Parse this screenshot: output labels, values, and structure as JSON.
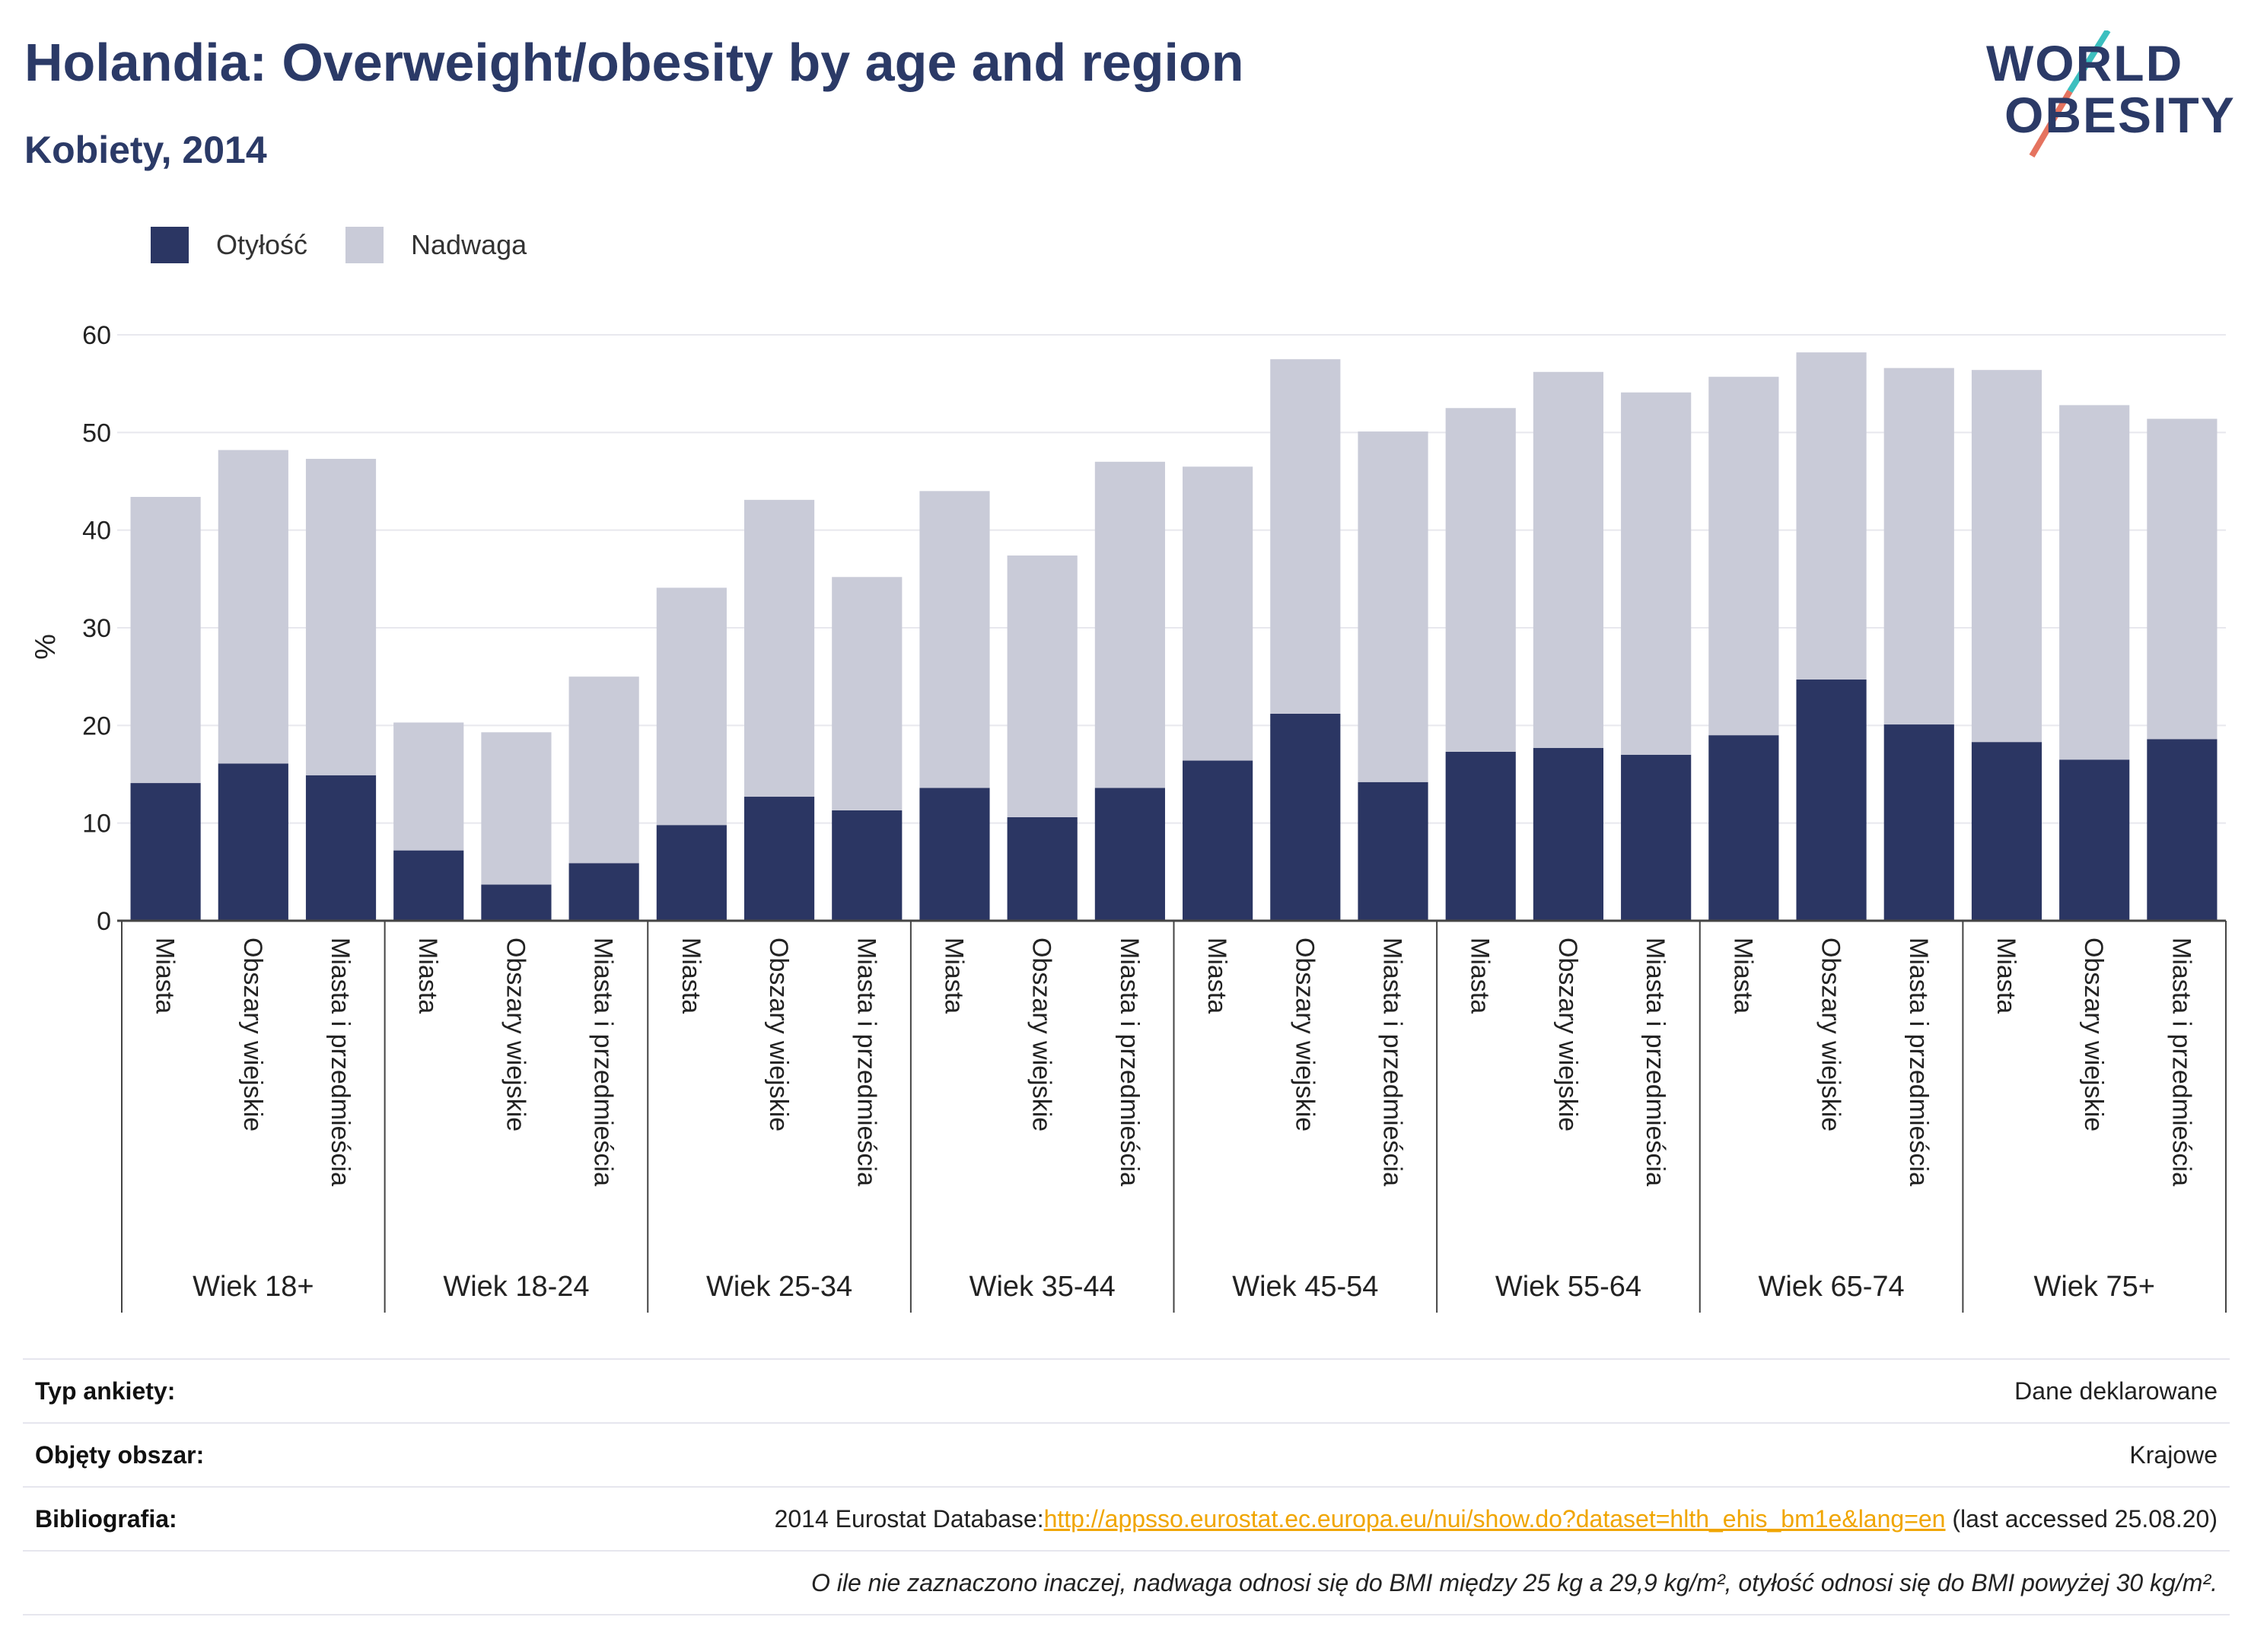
{
  "header": {
    "title": "Holandia: Overweight/obesity by age and region",
    "subtitle": "Kobiety, 2014"
  },
  "logo": {
    "line1": "WORLD",
    "line2": "OBESITY"
  },
  "colors": {
    "obesity": "#2b3663",
    "overweight": "#c9cbd8",
    "title": "#2b3a67",
    "link": "#f0a500"
  },
  "chart_data": {
    "type": "bar",
    "stacked": true,
    "ylabel": "%",
    "ylim": [
      0,
      60
    ],
    "yticks": [
      0,
      10,
      20,
      30,
      40,
      50,
      60
    ],
    "grid": true,
    "legend_placement": "top-left",
    "groups": [
      "Wiek 18+",
      "Wiek 18-24",
      "Wiek 25-34",
      "Wiek 35-44",
      "Wiek 45-54",
      "Wiek 55-64",
      "Wiek 65-74",
      "Wiek 75+"
    ],
    "subcategories": [
      "Miasta",
      "Obszary wiejskie",
      "Miasta i przedmieścia"
    ],
    "series": [
      {
        "name": "Otyłość",
        "values": [
          [
            14.1,
            16.1,
            14.9
          ],
          [
            7.2,
            3.7,
            5.9
          ],
          [
            9.8,
            12.7,
            11.3
          ],
          [
            13.6,
            10.6,
            13.6
          ],
          [
            16.4,
            21.2,
            14.2
          ],
          [
            17.3,
            17.7,
            17.0
          ],
          [
            19.0,
            24.7,
            20.1
          ],
          [
            18.3,
            16.5,
            18.6
          ]
        ]
      },
      {
        "name": "Nadwaga",
        "values": [
          [
            29.3,
            32.1,
            32.4
          ],
          [
            13.1,
            15.6,
            19.1
          ],
          [
            24.3,
            30.4,
            23.9
          ],
          [
            30.4,
            26.8,
            33.4
          ],
          [
            30.1,
            36.3,
            35.9
          ],
          [
            35.2,
            38.5,
            37.1
          ],
          [
            36.7,
            33.5,
            36.5
          ],
          [
            38.1,
            36.3,
            32.8
          ]
        ]
      }
    ]
  },
  "info": {
    "rows": [
      {
        "key": "Typ ankiety:",
        "value": "Dane deklarowane"
      },
      {
        "key": "Objęty obszar:",
        "value": "Krajowe"
      }
    ],
    "bibliography": {
      "key": "Bibliografia:",
      "prefix": "2014 Eurostat Database:",
      "link": "http://appsso.eurostat.ec.europa.eu/nui/show.do?dataset=hlth_ehis_bm1e&lang=en",
      "suffix": " (last accessed 25.08.20)"
    },
    "note": "O ile nie zaznaczono inaczej, nadwaga odnosi się do BMI między 25 kg a 29,9 kg/m², otyłość odnosi się do BMI powyżej 30 kg/m²."
  }
}
